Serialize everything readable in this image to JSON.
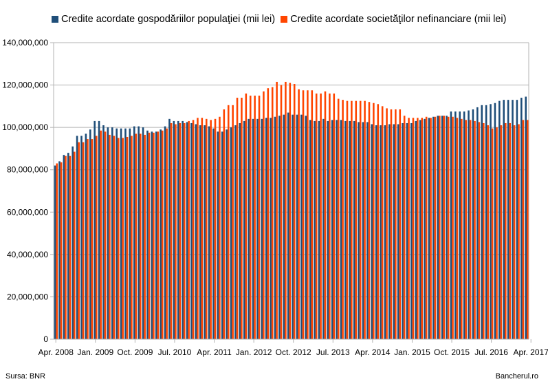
{
  "chart_data": {
    "type": "bar",
    "title": "",
    "xlabel": "",
    "ylabel": "",
    "ylim": [
      0,
      140000000
    ],
    "yticks": [
      0,
      20000000,
      40000000,
      60000000,
      80000000,
      100000000,
      120000000,
      140000000
    ],
    "ytick_labels": [
      "0",
      "20,000,000",
      "40,000,000",
      "60,000,000",
      "80,000,000",
      "100,000,000",
      "120,000,000",
      "140,000,000"
    ],
    "xtick_labels": [
      "Apr. 2008",
      "Jan. 2009",
      "Oct. 2009",
      "Jul. 2010",
      "Apr. 2011",
      "Jan. 2012",
      "Oct. 2012",
      "Jul. 2013",
      "Apr. 2014",
      "Jan. 2015",
      "Oct. 2015",
      "Jul. 2016",
      "Apr. 2017"
    ],
    "grid": true,
    "legend_position": "top",
    "colors": {
      "households": "#1f4e79",
      "companies": "#ff4500"
    },
    "series": [
      {
        "name": "Credite acordate gospodăriilor populaţiei (mii lei)",
        "values": [
          82000000,
          84000000,
          87000000,
          88000000,
          91000000,
          96000000,
          96000000,
          97000000,
          99000000,
          103000000,
          103000000,
          101000000,
          100000000,
          100000000,
          99500000,
          99500000,
          99500000,
          99500000,
          100500000,
          100500000,
          100000000,
          98500000,
          98000000,
          98000000,
          99000000,
          100500000,
          104000000,
          103000000,
          103000000,
          103000000,
          102500000,
          102000000,
          101500000,
          101000000,
          101000000,
          100500000,
          99500000,
          98000000,
          98000000,
          99000000,
          100000000,
          101000000,
          102000000,
          103000000,
          104000000,
          104000000,
          104000000,
          104000000,
          104500000,
          104500000,
          105000000,
          105500000,
          106000000,
          107000000,
          106000000,
          106000000,
          106000000,
          105500000,
          103500000,
          103000000,
          103000000,
          104000000,
          103000000,
          103500000,
          103500000,
          103500000,
          103000000,
          103000000,
          103000000,
          102500000,
          102500000,
          102500000,
          101500000,
          101000000,
          101000000,
          101000000,
          101500000,
          101500000,
          101500000,
          102000000,
          102000000,
          102000000,
          103000000,
          103500000,
          104000000,
          104500000,
          105000000,
          105500000,
          105500000,
          105500000,
          107500000,
          107500000,
          107500000,
          107500000,
          108000000,
          108500000,
          109500000,
          110500000,
          110500000,
          111000000,
          111500000,
          112500000,
          113000000,
          113000000,
          113000000,
          113000000,
          114000000,
          114500000
        ],
        "values_note": "",
        "color": "#1f4e79"
      },
      {
        "name": "Credite acordate societăţilor nefinanciare (mii lei)",
        "values": [
          83000000,
          83500000,
          86500000,
          86500000,
          88500000,
          93000000,
          93000000,
          94500000,
          94500000,
          96000000,
          98500000,
          98000000,
          96500000,
          96000000,
          95000000,
          95000000,
          95500000,
          96000000,
          97000000,
          97000000,
          96500000,
          97500000,
          97500000,
          98000000,
          98500000,
          99500000,
          102000000,
          101500000,
          102000000,
          102000000,
          103000000,
          103500000,
          104500000,
          104500000,
          104000000,
          103500000,
          104000000,
          105000000,
          108500000,
          110500000,
          110500000,
          114000000,
          114000000,
          116000000,
          115000000,
          115000000,
          115000000,
          117000000,
          118500000,
          119000000,
          121500000,
          120000000,
          121500000,
          121000000,
          120500000,
          118000000,
          117500000,
          117500000,
          117500000,
          116000000,
          116000000,
          117000000,
          116000000,
          116000000,
          113500000,
          113000000,
          112500000,
          112500000,
          112500000,
          112500000,
          112500000,
          112000000,
          111500000,
          111000000,
          110000000,
          109000000,
          108500000,
          108500000,
          108500000,
          105500000,
          104500000,
          104500000,
          104500000,
          104500000,
          105000000,
          104500000,
          105000000,
          105500000,
          105500000,
          105000000,
          105000000,
          104500000,
          104000000,
          103500000,
          103500000,
          103000000,
          102500000,
          102000000,
          101000000,
          99500000,
          100000000,
          101000000,
          102000000,
          102000000,
          101000000,
          101500000,
          103500000,
          103500000
        ],
        "color": "#ff4500"
      }
    ]
  },
  "legend": {
    "items": [
      {
        "label": "Credite acordate gospodăriilor populaţiei (mii lei)",
        "color": "#1f4e79"
      },
      {
        "label": "Credite acordate societăţilor nefinanciare (mii lei)",
        "color": "#ff4500"
      }
    ]
  },
  "footer": {
    "source": "Sursa: BNR",
    "site": "Bancherul.ro"
  }
}
